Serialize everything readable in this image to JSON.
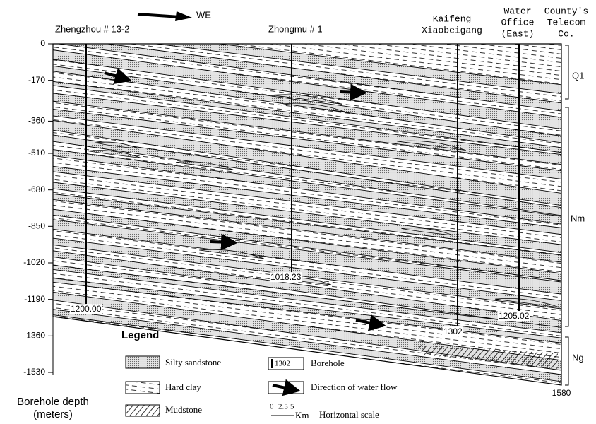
{
  "header": {
    "direction": "WE"
  },
  "boreholes": [
    {
      "name": [
        "Zhengzhou # 13-2"
      ],
      "depth": "1200.00"
    },
    {
      "name": [
        "Zhongmu # 1"
      ],
      "depth": "1018.23"
    },
    {
      "name": [
        "Kaifeng",
        "Xiaobeigang"
      ],
      "depth": "1302"
    },
    {
      "name": [
        "Water",
        "Office",
        "(East)"
      ],
      "depth": "1205.02"
    },
    {
      "name": [
        "County's",
        "Telecom",
        "Co."
      ],
      "depth": "1580"
    }
  ],
  "depth_axis": {
    "ticks": [
      0,
      -170,
      -360,
      -510,
      -680,
      -850,
      -1020,
      -1190,
      -1360,
      -1530
    ],
    "title": [
      "Borehole depth",
      "(meters)"
    ]
  },
  "units": [
    "Q1",
    "Nm",
    "Ng"
  ],
  "legend": {
    "title": "Legend",
    "items": [
      "Silty sandstone",
      "Hard clay",
      "Mudstone",
      "Borehole",
      "Direction of water flow",
      "Horizontal scale"
    ],
    "borehole_sample": "1302",
    "scale": [
      "0",
      "2.5",
      "5",
      "Km"
    ]
  }
}
